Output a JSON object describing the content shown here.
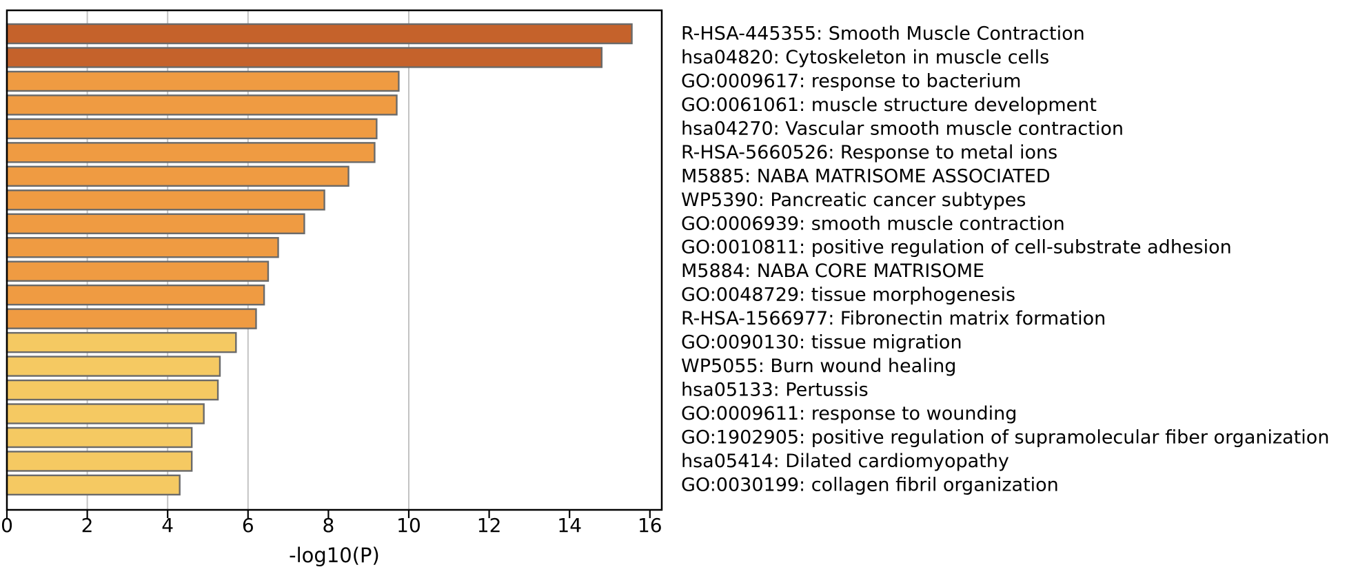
{
  "figure": {
    "background": "#ffffff"
  },
  "chart_data": {
    "type": "bar",
    "orientation": "horizontal",
    "title": "",
    "xlabel": "-log10(P)",
    "ylabel": "",
    "xlim": [
      0,
      16.3
    ],
    "x_ticks": [
      0,
      2,
      4,
      6,
      8,
      10,
      12,
      14,
      16
    ],
    "gridlines_at": [
      2,
      4,
      6,
      10
    ],
    "grid": "vertical-reference-lines-under-bars",
    "legend_position": "none",
    "categories": [
      "R-HSA-445355: Smooth Muscle Contraction",
      "hsa04820: Cytoskeleton in muscle cells",
      "GO:0009617: response to bacterium",
      "GO:0061061: muscle structure development",
      "hsa04270: Vascular smooth muscle contraction",
      "R-HSA-5660526: Response to metal ions",
      "M5885: NABA MATRISOME ASSOCIATED",
      "WP5390: Pancreatic cancer subtypes",
      "GO:0006939: smooth muscle contraction",
      "GO:0010811: positive regulation of cell-substrate adhesion",
      "M5884: NABA CORE MATRISOME",
      "GO:0048729: tissue morphogenesis",
      "R-HSA-1566977: Fibronectin matrix formation",
      "GO:0090130: tissue migration",
      "WP5055: Burn wound healing",
      "hsa05133: Pertussis",
      "GO:0009611: response to wounding",
      "GO:1902905: positive regulation of supramolecular fiber organization",
      "hsa05414: Dilated cardiomyopathy",
      "GO:0030199: collagen fibril organization"
    ],
    "values": [
      15.55,
      14.8,
      9.75,
      9.7,
      9.2,
      9.15,
      8.5,
      7.9,
      7.4,
      6.75,
      6.5,
      6.4,
      6.2,
      5.7,
      5.3,
      5.25,
      4.9,
      4.6,
      4.6,
      4.3
    ],
    "color_bins": [
      {
        "min_value": 10,
        "color": "#c5622b"
      },
      {
        "min_value": 6,
        "color": "#ef9b42"
      },
      {
        "min_value": 4,
        "color": "#f5c962"
      }
    ],
    "bar_edge_color": "#6a6a6a",
    "gridline_color": "#c3c3c3",
    "axis_color": "#000000",
    "text_color": "#000000"
  }
}
